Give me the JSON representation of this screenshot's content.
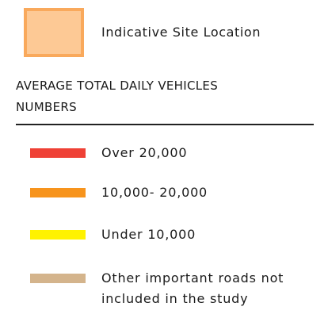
{
  "legend": {
    "site": {
      "label": "Indicative Site Location",
      "color": "#fdc995",
      "border": "#f9a95c"
    },
    "heading": "AVERAGE TOTAL DAILY VEHICLES NUMBERS",
    "items": [
      {
        "label": "Over 20,000",
        "color": "#ef4136"
      },
      {
        "label": "10,000- 20,000",
        "color": "#f7941d"
      },
      {
        "label": "Under 10,000",
        "color": "#fff200"
      },
      {
        "label": "Other important roads not included in the study",
        "color": "#d4b48c"
      }
    ]
  }
}
